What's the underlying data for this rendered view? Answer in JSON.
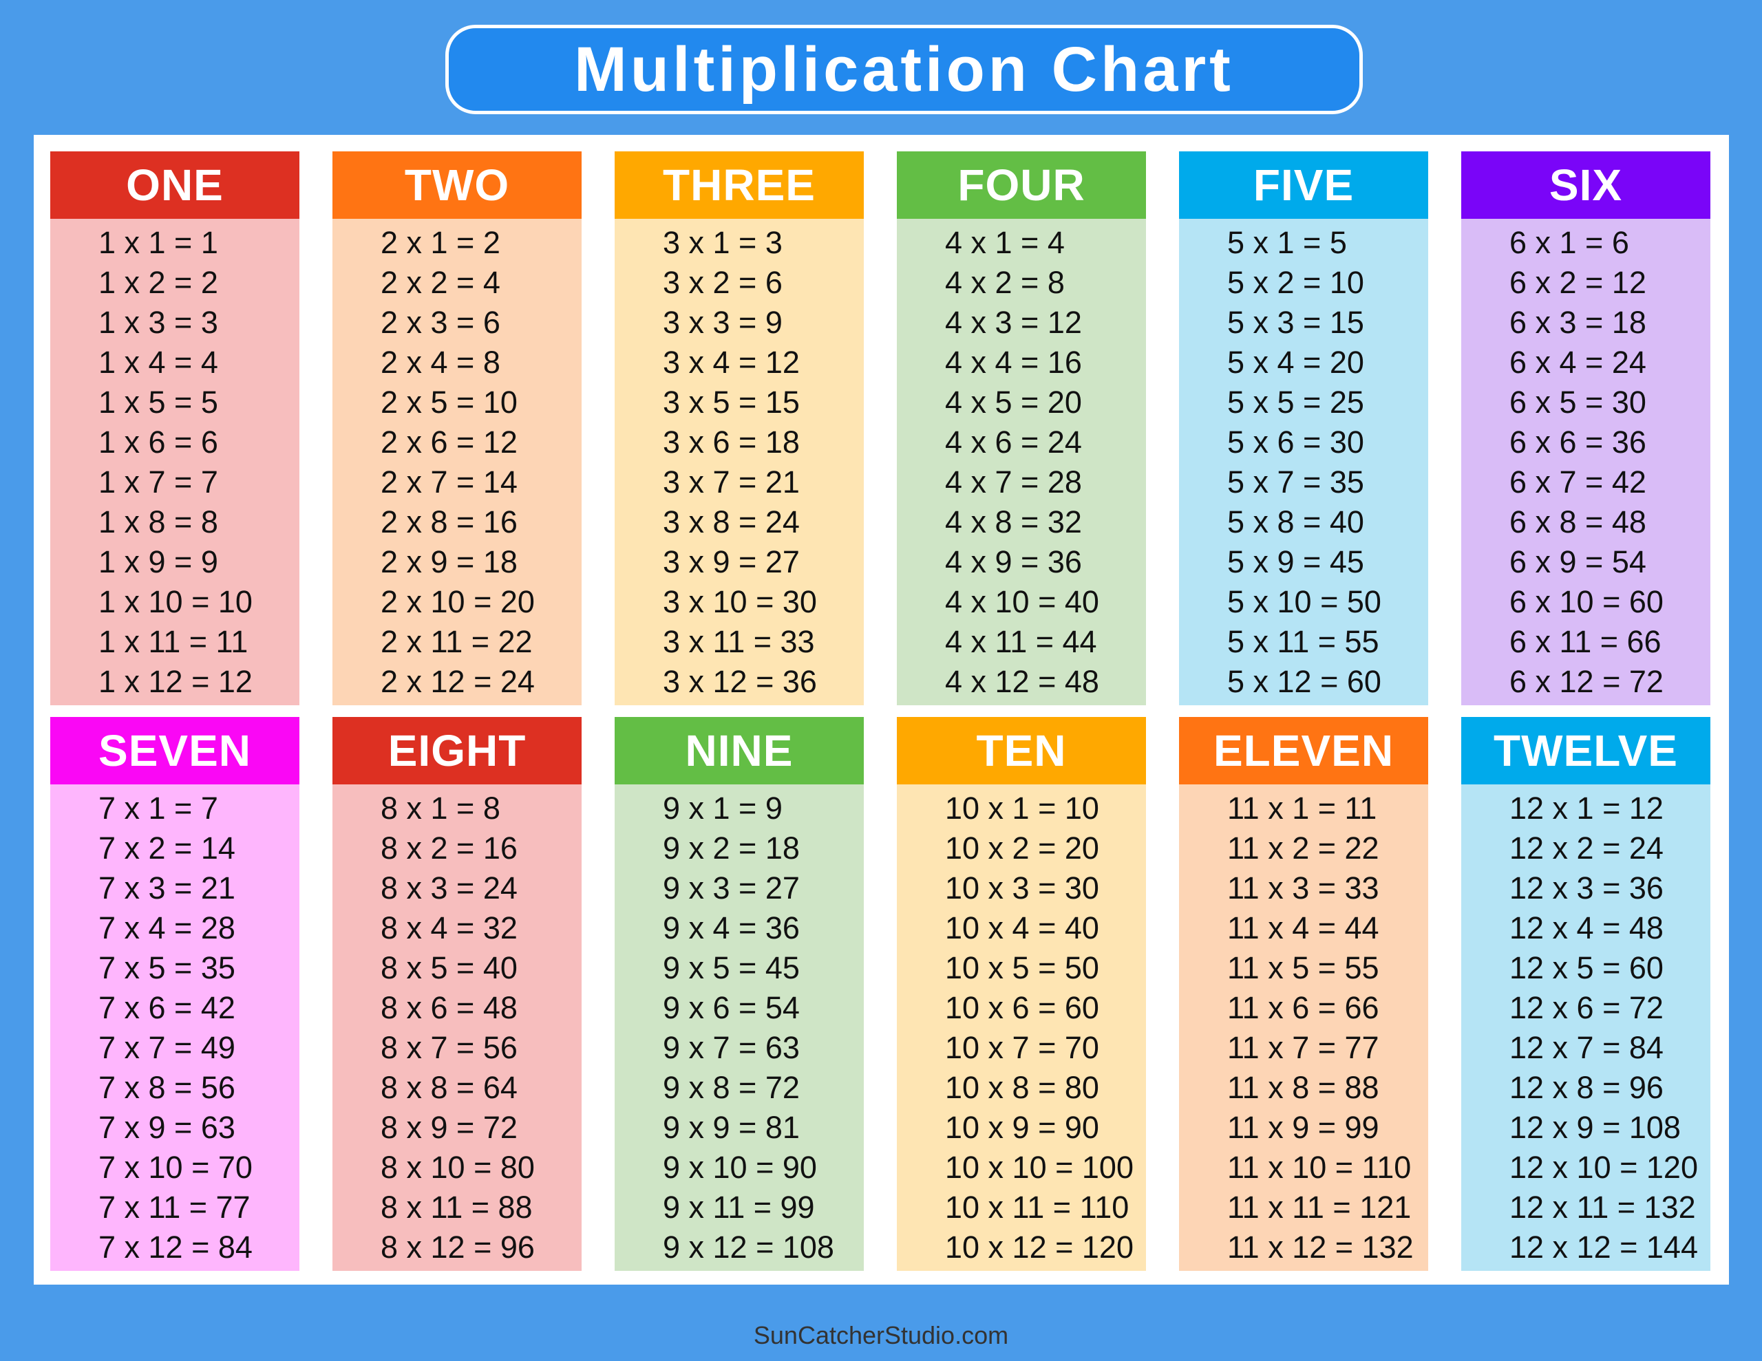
{
  "title": "Multiplication Chart",
  "footer": "SunCatcherStudio.com",
  "columns": [
    {
      "name": "ONE",
      "header_color": "#DD3022",
      "body_color": "#F7BEBE",
      "rows": [
        "1 x 1 = 1",
        "1 x 2 = 2",
        "1 x 3 = 3",
        "1 x 4 = 4",
        "1 x 5 = 5",
        "1 x 6 = 6",
        "1 x 7 = 7",
        "1 x 8 = 8",
        "1 x 9 = 9",
        "1 x 10 = 10",
        "1 x 11 = 11",
        "1 x 12 = 12"
      ]
    },
    {
      "name": "TWO",
      "header_color": "#FF7413",
      "body_color": "#FDD5B5",
      "rows": [
        "2 x 1 = 2",
        "2 x 2 = 4",
        "2 x 3 = 6",
        "2 x 4 = 8",
        "2 x 5 = 10",
        "2 x 6 = 12",
        "2 x 7 = 14",
        "2 x 8 = 16",
        "2 x 9 = 18",
        "2 x 10 = 20",
        "2 x 11 = 22",
        "2 x 12 = 24"
      ]
    },
    {
      "name": "THREE",
      "header_color": "#FFA800",
      "body_color": "#FEE5B3",
      "rows": [
        "3 x 1 = 3",
        "3 x 2 = 6",
        "3 x 3 = 9",
        "3 x 4 = 12",
        "3 x 5 = 15",
        "3 x 6 = 18",
        "3 x 7 = 21",
        "3 x 8 = 24",
        "3 x 9 = 27",
        "3 x 10 = 30",
        "3 x 11 = 33",
        "3 x 12 = 36"
      ]
    },
    {
      "name": "FOUR",
      "header_color": "#63BE45",
      "body_color": "#CFE5C6",
      "rows": [
        "4 x 1 = 4",
        "4 x 2 = 8",
        "4 x 3 = 12",
        "4 x 4 = 16",
        "4 x 5 = 20",
        "4 x 6 = 24",
        "4 x 7 = 28",
        "4 x 8 = 32",
        "4 x 9 = 36",
        "4 x 10 = 40",
        "4 x 11 = 44",
        "4 x 12 = 48"
      ]
    },
    {
      "name": "FIVE",
      "header_color": "#00AAEB",
      "body_color": "#B5E4F5",
      "rows": [
        "5 x 1 = 5",
        "5 x 2 = 10",
        "5 x 3 = 15",
        "5 x 4 = 20",
        "5 x 5 = 25",
        "5 x 6 = 30",
        "5 x 7 = 35",
        "5 x 8 = 40",
        "5 x 9 = 45",
        "5 x 10 = 50",
        "5 x 11 = 55",
        "5 x 12 = 60"
      ]
    },
    {
      "name": "SIX",
      "header_color": "#7A05F8",
      "body_color": "#D9BCF7",
      "rows": [
        "6 x 1 = 6",
        "6 x 2 = 12",
        "6 x 3 = 18",
        "6 x 4 = 24",
        "6 x 5 = 30",
        "6 x 6 = 36",
        "6 x 7 = 42",
        "6 x 8 = 48",
        "6 x 9 = 54",
        "6 x 10 = 60",
        "6 x 11 = 66",
        "6 x 12 = 72"
      ]
    },
    {
      "name": "SEVEN",
      "header_color": "#FA07F5",
      "body_color": "#FEB6FD",
      "rows": [
        "7 x 1 = 7",
        "7 x 2 = 14",
        "7 x 3 = 21",
        "7 x 4 = 28",
        "7 x 5 = 35",
        "7 x 6 = 42",
        "7 x 7 = 49",
        "7 x 8 = 56",
        "7 x 9 = 63",
        "7 x 10 = 70",
        "7 x 11 = 77",
        "7 x 12 = 84"
      ]
    },
    {
      "name": "EIGHT",
      "header_color": "#DD3022",
      "body_color": "#F7BEBE",
      "rows": [
        "8 x 1 = 8",
        "8 x 2 = 16",
        "8 x 3 = 24",
        "8 x 4 = 32",
        "8 x 5 = 40",
        "8 x 6 = 48",
        "8 x 7 = 56",
        "8 x 8 = 64",
        "8 x 9 = 72",
        "8 x 10 = 80",
        "8 x 11 = 88",
        "8 x 12 = 96"
      ]
    },
    {
      "name": "NINE",
      "header_color": "#63BE45",
      "body_color": "#CFE5C6",
      "rows": [
        "9 x 1 = 9",
        "9 x 2 = 18",
        "9 x 3 = 27",
        "9 x 4 = 36",
        "9 x 5 = 45",
        "9 x 6 = 54",
        "9 x 7 = 63",
        "9 x 8 = 72",
        "9 x 9 = 81",
        "9 x 10 = 90",
        "9 x 11 = 99",
        "9 x 12 = 108"
      ]
    },
    {
      "name": "TEN",
      "header_color": "#FFA800",
      "body_color": "#FEE5B3",
      "rows": [
        "10 x 1 = 10",
        "10 x 2 = 20",
        "10 x 3 = 30",
        "10 x 4 = 40",
        "10 x 5 = 50",
        "10 x 6 = 60",
        "10 x 7 = 70",
        "10 x 8 = 80",
        "10 x 9 = 90",
        "10 x 10 = 100",
        "10 x 11 = 110",
        "10 x 12 = 120"
      ]
    },
    {
      "name": "ELEVEN",
      "header_color": "#FF7413",
      "body_color": "#FDD5B5",
      "rows": [
        "11 x 1 = 11",
        "11 x 2 = 22",
        "11 x 3 = 33",
        "11 x 4 = 44",
        "11 x 5 = 55",
        "11 x 6 = 66",
        "11 x 7 = 77",
        "11 x 8 = 88",
        "11 x 9 = 99",
        "11 x 10 = 110",
        "11 x 11 = 121",
        "11 x 12 = 132"
      ]
    },
    {
      "name": "TWELVE",
      "header_color": "#00AAEB",
      "body_color": "#B5E4F5",
      "rows": [
        "12 x 1 = 12",
        "12 x 2 = 24",
        "12 x 3 = 36",
        "12 x 4 = 48",
        "12 x 5 = 60",
        "12 x 6 = 72",
        "12 x 7 = 84",
        "12 x 8 = 96",
        "12 x 9 = 108",
        "12 x 10 = 120",
        "12 x 11 = 132",
        "12 x 12 = 144"
      ]
    }
  ]
}
